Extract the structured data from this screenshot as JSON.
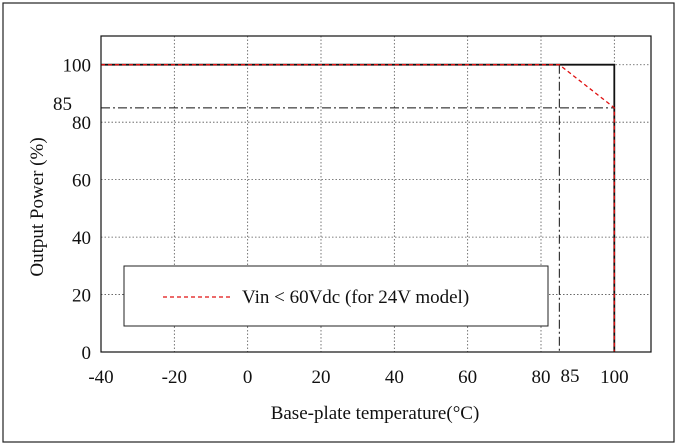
{
  "chart_data": {
    "type": "line",
    "title": "",
    "xlabel": "Base-plate temperature(°C)",
    "ylabel": "Output Power (%)",
    "xlim": [
      -40,
      110
    ],
    "ylim": [
      0,
      110
    ],
    "x_ticks": [
      -40,
      -20,
      0,
      20,
      40,
      60,
      80,
      100
    ],
    "y_ticks": [
      0,
      20,
      40,
      60,
      80,
      100
    ],
    "annotations": {
      "x85": "85",
      "y85": "85"
    },
    "reference_lines": {
      "x": 85,
      "y": 85,
      "style": "dash-dot"
    },
    "series": [
      {
        "key": "full",
        "color": "#111111",
        "style": "solid",
        "x": [
          -40,
          100,
          100
        ],
        "y": [
          100,
          100,
          0
        ]
      },
      {
        "name": "Vin < 60Vdc (for 24V model)",
        "color": "#e01010",
        "style": "dashed",
        "x": [
          -40,
          85,
          100,
          100
        ],
        "y": [
          100,
          100,
          85,
          0
        ]
      }
    ],
    "legend": {
      "position": "lower-center",
      "text": "Vin < 60Vdc (for 24V model)"
    },
    "grid": true
  }
}
